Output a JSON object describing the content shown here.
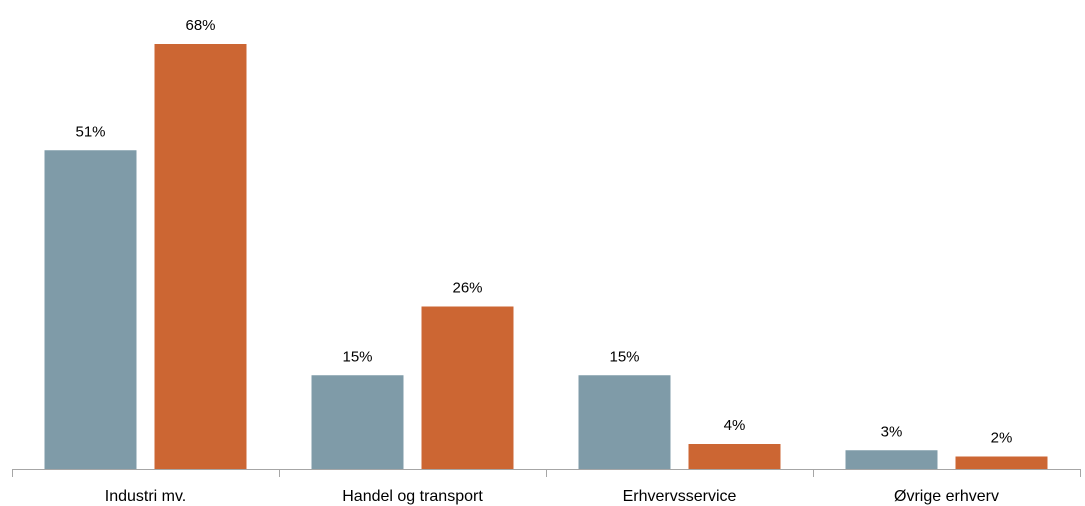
{
  "chart_data": {
    "type": "bar",
    "categories": [
      "Industri mv.",
      "Handel og transport",
      "Erhvervsservice",
      "Øvrige erhverv"
    ],
    "series": [
      {
        "values": [
          51,
          15,
          15,
          3
        ],
        "labels": [
          "51%",
          "15%",
          "15%",
          "3%"
        ],
        "color": "#7f9ba8"
      },
      {
        "values": [
          68,
          26,
          4,
          2
        ],
        "labels": [
          "68%",
          "26%",
          "4%",
          "2%"
        ],
        "color": "#cc6633"
      }
    ],
    "ylim": [
      0,
      68
    ],
    "grid": false,
    "axis_color": "#a6a6a6"
  }
}
